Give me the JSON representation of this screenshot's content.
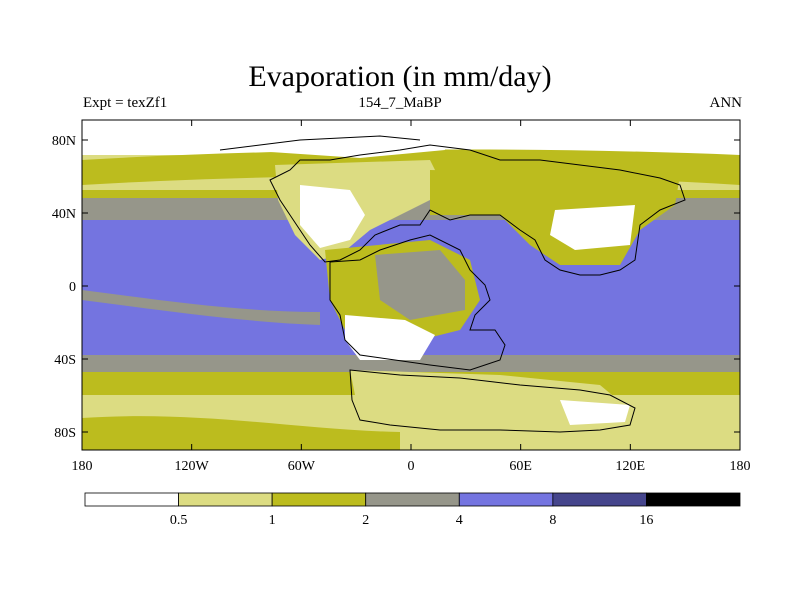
{
  "title": "Evaporation (in mm/day)",
  "subtitle_left": "Expt = texZf1",
  "subtitle_center": "154_7_MaBP",
  "subtitle_right": "ANN",
  "map": {
    "lon_ticks": [
      "180",
      "120W",
      "60W",
      "0",
      "60E",
      "120E",
      "180"
    ],
    "lat_ticks": [
      "80N",
      "40N",
      "0",
      "40S",
      "80S"
    ],
    "lon_range": [
      -180,
      180
    ],
    "lat_range": [
      -90,
      90
    ]
  },
  "colorbar": {
    "levels": [
      "0.5",
      "1",
      "2",
      "4",
      "8",
      "16"
    ],
    "colors": [
      "#ffffff",
      "#dcdc82",
      "#bcbc1e",
      "#96968a",
      "#7474e0",
      "#45458c",
      "#000000"
    ]
  }
}
